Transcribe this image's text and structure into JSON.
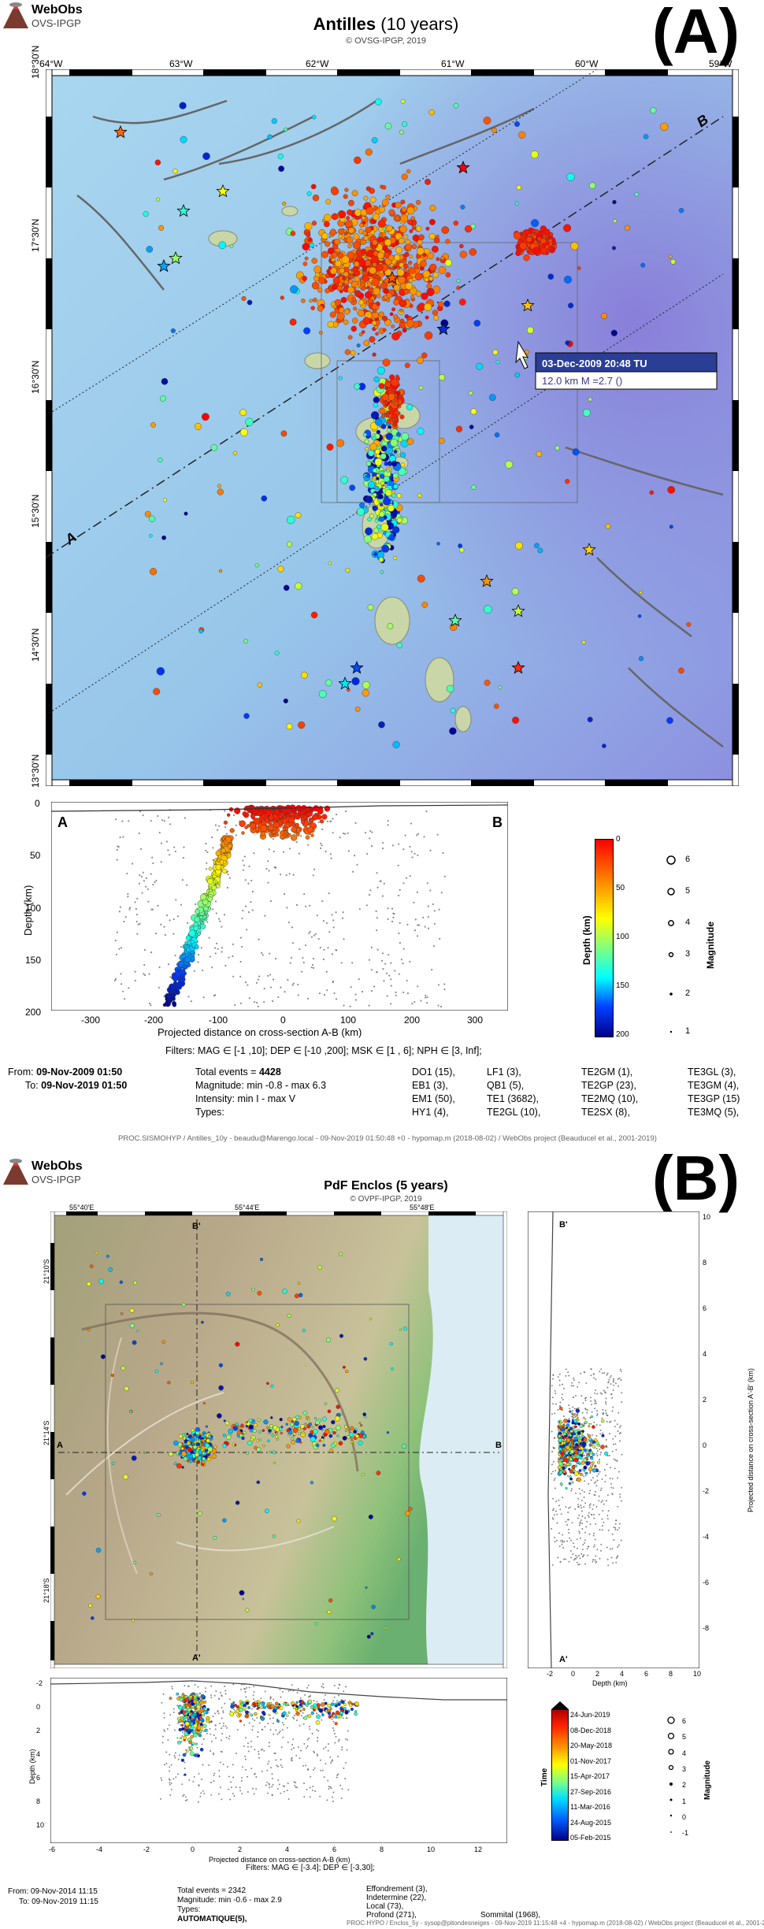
{
  "panel_a": {
    "logo_line1": "WebObs",
    "logo_line2": "OVS-IPGP",
    "label": "(A)",
    "title_main": "Antilles",
    "title_sub": "(10 years)",
    "copyright": "© OVSG-IPGP, 2019",
    "lon_labels": [
      "64°W",
      "63°W",
      "62°W",
      "61°W",
      "60°W",
      "59°W"
    ],
    "lat_labels": [
      "18°30'N",
      "17°30'N",
      "16°30'N",
      "15°30'N",
      "14°30'N",
      "13°30'N"
    ],
    "section_a": "A",
    "section_b": "B",
    "tooltip_title": "03-Dec-2009 20:48 TU",
    "tooltip_body": "12.0 km M =2.7 ()",
    "section_ylabel": "Depth (km)",
    "section_xlabel": "Projected distance on cross-section A-B (km)",
    "section_yticks": [
      "0",
      "50",
      "100",
      "150",
      "200"
    ],
    "section_xticks": [
      "-300",
      "-200",
      "-100",
      "0",
      "100",
      "200",
      "300"
    ],
    "colorbar_label": "Depth (km)",
    "colorbar_ticks": [
      "0",
      "50",
      "100",
      "150",
      "200"
    ],
    "magnitude_label": "Magnitude",
    "magnitude_ticks": [
      "6",
      "5",
      "4",
      "3",
      "2",
      "1"
    ],
    "filters": "Filters: MAG ∈ [-1 ,10]; DEP ∈ [-10 ,200]; MSK ∈ [1 , 6]; NPH ∈ [3, Inf];",
    "from_label": "From:",
    "from_value": "09-Nov-2009 01:50",
    "to_label": "To:",
    "to_value": "09-Nov-2019 01:50",
    "total_events_label": "Total events =",
    "total_events_value": "4428",
    "magnitude_stat": "Magnitude: min -0.8 - max 6.3",
    "intensity_stat": "Intensity: min I - max V",
    "types_label": "Types:",
    "types": [
      [
        "DO1 (15),",
        "LF1 (3),",
        "TE2GM (1),",
        "TE3GL (3),"
      ],
      [
        "EB1 (3),",
        "QB1 (5),",
        "TE2GP (23),",
        "TE3GM (4),"
      ],
      [
        "EM1 (50),",
        "TE1 (3682),",
        "TE2MQ (10),",
        "TE3GP (15)"
      ],
      [
        "HY1 (4),",
        "TE2GL (10),",
        "TE2SX (8),",
        "TE3MQ (5),"
      ]
    ],
    "footer": "PROC.SISMOHYP / Antilles_10y - beaudu@Marengo.local - 09-Nov-2019 01:50:48 +0 - hypomap.m (2018-08-02) / WebObs project (Beauducel et al., 2001-2019)"
  },
  "panel_b": {
    "logo_line1": "WebObs",
    "logo_line2": "OVS-IPGP",
    "label": "(B)",
    "title": "PdF Enclos (5 years)",
    "copyright": "© OVPF-IPGP, 2019",
    "lon_labels": [
      "55°40'E",
      "55°44'E",
      "55°48'E"
    ],
    "lat_labels": [
      "21°10'S",
      "21°14'S",
      "21°18'S"
    ],
    "section_a": "A",
    "section_b": "B",
    "section_a2": "A'",
    "section_b2": "B'",
    "side_ylabel": "Projected distance on cross-section A'-B' (km)",
    "side_xlabel": "Depth (km)",
    "side_yticks": [
      "10",
      "8",
      "6",
      "4",
      "2",
      "0",
      "-2",
      "-4",
      "-6",
      "-8"
    ],
    "side_xticks": [
      "-2",
      "0",
      "2",
      "4",
      "6",
      "8",
      "10"
    ],
    "bottom_ylabel": "Depth (km)",
    "bottom_xlabel": "Projected distance on cross-section A-B (km)",
    "bottom_yticks": [
      "-2",
      "0",
      "2",
      "4",
      "6",
      "8",
      "10"
    ],
    "bottom_xticks": [
      "-6",
      "-4",
      "-2",
      "0",
      "2",
      "4",
      "6",
      "8",
      "10",
      "12"
    ],
    "time_label": "Time",
    "time_ticks": [
      "24-Jun-2019",
      "08-Dec-2018",
      "20-May-2018",
      "01-Nov-2017",
      "15-Apr-2017",
      "27-Sep-2016",
      "11-Mar-2016",
      "24-Aug-2015",
      "05-Feb-2015"
    ],
    "magnitude_label": "Magnitude",
    "magnitude_ticks": [
      "6",
      "5",
      "4",
      "3",
      "2",
      "1",
      "0",
      "-1"
    ],
    "filters": "Filters: MAG ∈ [-3.4]; DEP ∈ [-3,30];",
    "from_label": "From:",
    "from_value": "09-Nov-2014 11:15",
    "to_label": "To:",
    "to_value": "09-Nov-2019 11:15",
    "total_events": "Total events = 2342",
    "magnitude_stat": "Magnitude: min -0.6 - max 2.9",
    "types_label": "Types:",
    "types_value": "AUTOMATIQUE(5),",
    "type_list": [
      "Effondrement (3),",
      "Indetermine (22),",
      "Local (73),",
      "Profond (271),",
      "Sommital (1968),"
    ],
    "footer": "PROC.HYPO / Enclos_5y - sysop@pitondesneiges - 09-Nov-2019 11:15:48 +4 - hypomap.m (2018-08-02) / WebObs project (Beauducel et al., 2001-2019)"
  }
}
